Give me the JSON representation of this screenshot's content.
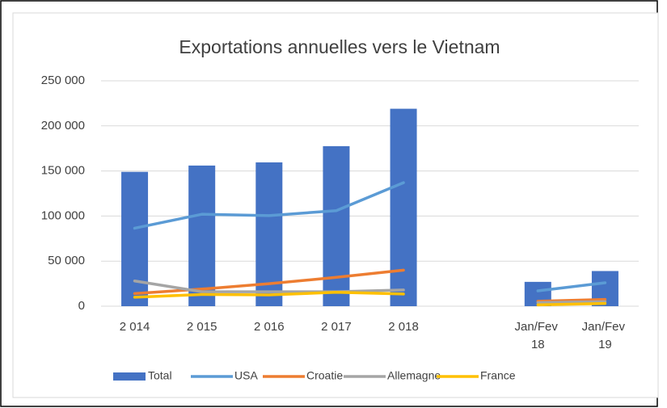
{
  "chart_data": {
    "type": "bar",
    "title": "Exportations annuelles vers le Vietnam",
    "categories": [
      "2 014",
      "2 015",
      "2 016",
      "2 017",
      "2 018",
      null,
      "Jan/Fev 18",
      "Jan/Fev 19"
    ],
    "series": [
      {
        "name": "Total",
        "type": "bar",
        "color": "#4472c4",
        "values": [
          149000,
          156000,
          159500,
          177500,
          219000,
          null,
          27000,
          39000
        ]
      },
      {
        "name": "USA",
        "type": "line",
        "color": "#5b9bd5",
        "values": [
          86500,
          102000,
          100500,
          106000,
          137000,
          null,
          17000,
          26000
        ]
      },
      {
        "name": "Croatie",
        "type": "line",
        "color": "#ed7d31",
        "values": [
          14000,
          19000,
          25000,
          32000,
          40000,
          null,
          5500,
          7500
        ]
      },
      {
        "name": "Allemagne",
        "type": "line",
        "color": "#a5a5a5",
        "values": [
          28000,
          16000,
          16000,
          16000,
          18000,
          null,
          4000,
          5000
        ]
      },
      {
        "name": "France",
        "type": "line",
        "color": "#ffc000",
        "values": [
          10000,
          13000,
          12500,
          15500,
          13500,
          null,
          1500,
          3000
        ]
      }
    ],
    "ylim": [
      0,
      250000
    ],
    "yticks": [
      0,
      {
        "value": 50000,
        "label": "50 000"
      },
      {
        "value": 100000,
        "label": "100 000"
      },
      {
        "value": 150000,
        "label": "150 000"
      },
      {
        "value": 200000,
        "label": "200 000"
      },
      {
        "value": 250000,
        "label": "250 000"
      }
    ],
    "grid": true,
    "legend": "bottom"
  }
}
